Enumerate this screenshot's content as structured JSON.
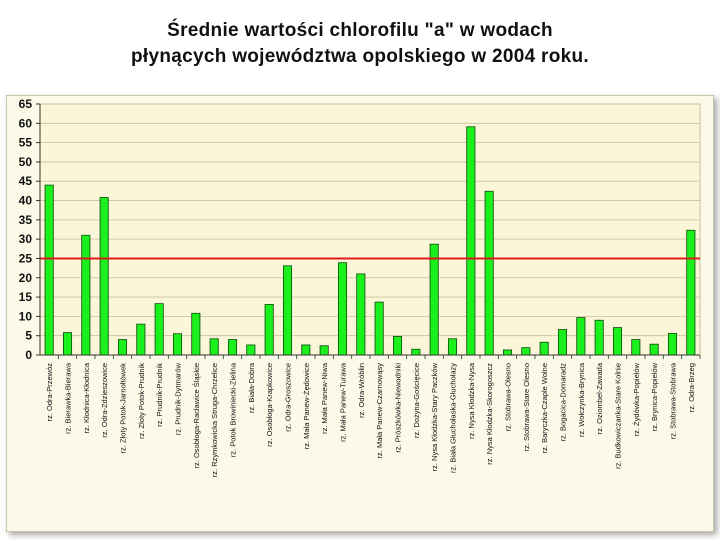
{
  "title_line1": "Średnie wartości chlorofilu \"a\" w wodach",
  "title_line2": "płynących województwa opolskiego w 2004 roku.",
  "colors": {
    "bar_fill": "#1cf01c",
    "bar_stroke": "#0a4a0a",
    "reference_line": "#e01a1a",
    "plot_background": "#fbf6d8",
    "gridline": "#c8c0a0"
  },
  "chart_data": {
    "type": "bar",
    "ylim": [
      0,
      65
    ],
    "yticks": [
      0,
      5,
      10,
      15,
      20,
      25,
      30,
      35,
      40,
      45,
      50,
      55,
      60,
      65
    ],
    "grid": true,
    "reference_line": 25,
    "categories": [
      "rz. Odra-Przewóz",
      "rz. Bierawka-Bierawa",
      "rz. Kłodnica-Kłodnica",
      "rz. Odra-Zdzieszowice",
      "rz. Złoty Potok-Jarnołtówek",
      "rz. Złoty Potok-Prudnik",
      "rz. Prudnik-Prudnik",
      "rz. Prudnik-Dytmarów",
      "rz. Osobłoga-Racławice Śląskie",
      "rz. Rzymkowicka Struga-Chrzelice",
      "rz. Potok Browiniecki-Zielina",
      "rz. Biała-Dobra",
      "rz. Osobłoga-Krapkowice",
      "rz. Odra-Groszowice",
      "rz. Mała Panew-Żędowice",
      "rz. Mała Panew-Niwa",
      "rz. Mała Panew-Turawa",
      "rz. Odra-Wróblin",
      "rz. Mała Panew-Czarnowąsy",
      "rz. Prószkówka-Niewodniki",
      "rz. Dożyna-Gościęcice",
      "rz. Nysa Kłodzka-Stary Paczków",
      "rz. Biała Głuchołaska-Głuchołazy",
      "rz. Nysa Kłodzka-Nysa",
      "rz. Nysa Kłodzka-Skorogoszcz",
      "rz. Stobrawa-Olesno",
      "rz. Stobrawa-Stare Olesno",
      "rz. Baryczka-Czaple Wolne",
      "rz. Bogacica-Domaradz",
      "rz. Wołczynka-Brynica",
      "rz. Oziombel-Zawada",
      "rz. Budkowiczanka-Stare Kolnie",
      "rz. Żydówka-Popielów",
      "rz. Brynica-Popielów",
      "rz. Stobrawa-Stobrawa",
      "rz. Odra-Brzeg"
    ],
    "values": [
      44,
      5.8,
      31,
      40.8,
      4,
      8,
      13.3,
      5.5,
      10.8,
      4.2,
      4,
      2.6,
      13.1,
      23.1,
      2.6,
      2.4,
      23.9,
      21,
      13.7,
      4.8,
      1.5,
      28.7,
      4.2,
      59.1,
      42.4,
      1.3,
      1.9,
      3.3,
      6.6,
      9.7,
      9,
      7.1,
      4,
      2.8,
      5.6,
      32.3
    ]
  }
}
